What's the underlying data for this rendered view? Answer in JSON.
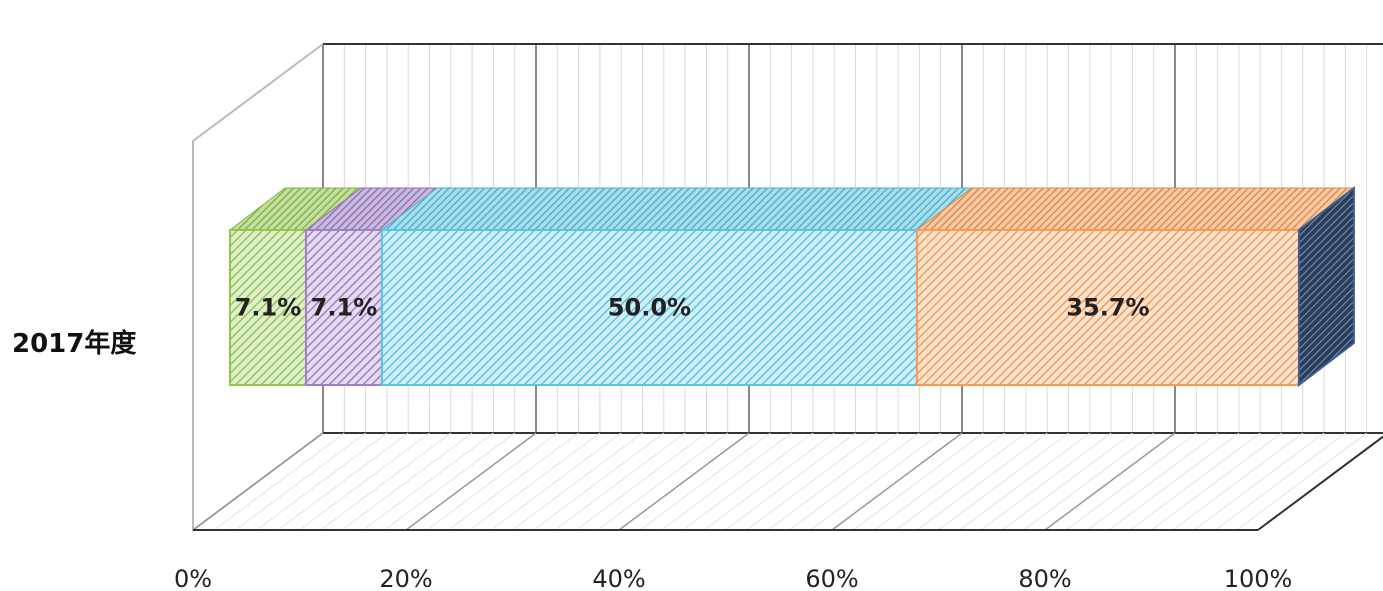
{
  "chart_data": {
    "type": "bar",
    "orientation": "horizontal",
    "stacked": "100%",
    "style": "3d",
    "categories": [
      "2017年度"
    ],
    "series": [
      {
        "values": [
          7.1
        ],
        "color": "#92C74F",
        "data_label": "7.1%"
      },
      {
        "values": [
          7.1
        ],
        "color": "#9E80C6",
        "data_label": "7.1%"
      },
      {
        "values": [
          50.0
        ],
        "color": "#5BC4E2",
        "data_label": "50.0%"
      },
      {
        "values": [
          35.7
        ],
        "color": "#F59B55",
        "data_label": "35.7%"
      },
      {
        "values": [
          0.0
        ],
        "color": "#3F5F8F",
        "data_label": ""
      }
    ],
    "x_ticks": [
      "0%",
      "20%",
      "40%",
      "60%",
      "80%",
      "100%"
    ],
    "xlim": [
      0,
      100
    ],
    "grid": true,
    "legend": "none"
  }
}
